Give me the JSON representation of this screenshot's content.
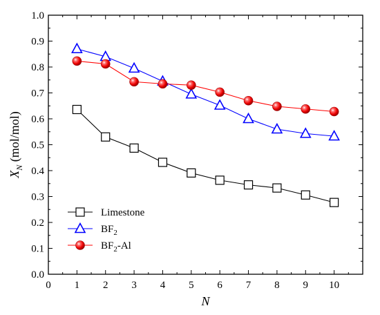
{
  "chart_data": {
    "type": "line",
    "xlabel": "N",
    "ylabel": "X_N (mol/mol)",
    "ylabel_parts": {
      "var": "X",
      "sub": "N",
      "unit": " (mol/mol)"
    },
    "xlim": [
      0,
      11
    ],
    "ylim": [
      0.0,
      1.0
    ],
    "xticks": [
      "0",
      "1",
      "2",
      "3",
      "4",
      "5",
      "6",
      "7",
      "8",
      "9",
      "10"
    ],
    "yticks": [
      "0.0",
      "0.1",
      "0.2",
      "0.3",
      "0.4",
      "0.5",
      "0.6",
      "0.7",
      "0.8",
      "0.9",
      "1.0"
    ],
    "x": [
      1,
      2,
      3,
      4,
      5,
      6,
      7,
      8,
      9,
      10
    ],
    "grid": false,
    "legend_position": "bottom-left",
    "series": [
      {
        "name": "Limestone",
        "name_parts": [
          "Limestone",
          "",
          ""
        ],
        "marker": "square",
        "color": "#000000",
        "values": [
          0.636,
          0.53,
          0.487,
          0.432,
          0.391,
          0.363,
          0.345,
          0.333,
          0.306,
          0.277
        ]
      },
      {
        "name": "BF2",
        "name_parts": [
          "BF",
          "2",
          ""
        ],
        "marker": "triangle",
        "color": "#0000ff",
        "values": [
          0.87,
          0.84,
          0.795,
          0.745,
          0.695,
          0.652,
          0.6,
          0.56,
          0.543,
          0.533
        ]
      },
      {
        "name": "BF2-Al",
        "name_parts": [
          "BF",
          "2",
          "-Al"
        ],
        "marker": "sphere",
        "color": "#ff0000",
        "values": [
          0.823,
          0.812,
          0.743,
          0.735,
          0.73,
          0.703,
          0.67,
          0.648,
          0.638,
          0.628
        ]
      }
    ]
  }
}
